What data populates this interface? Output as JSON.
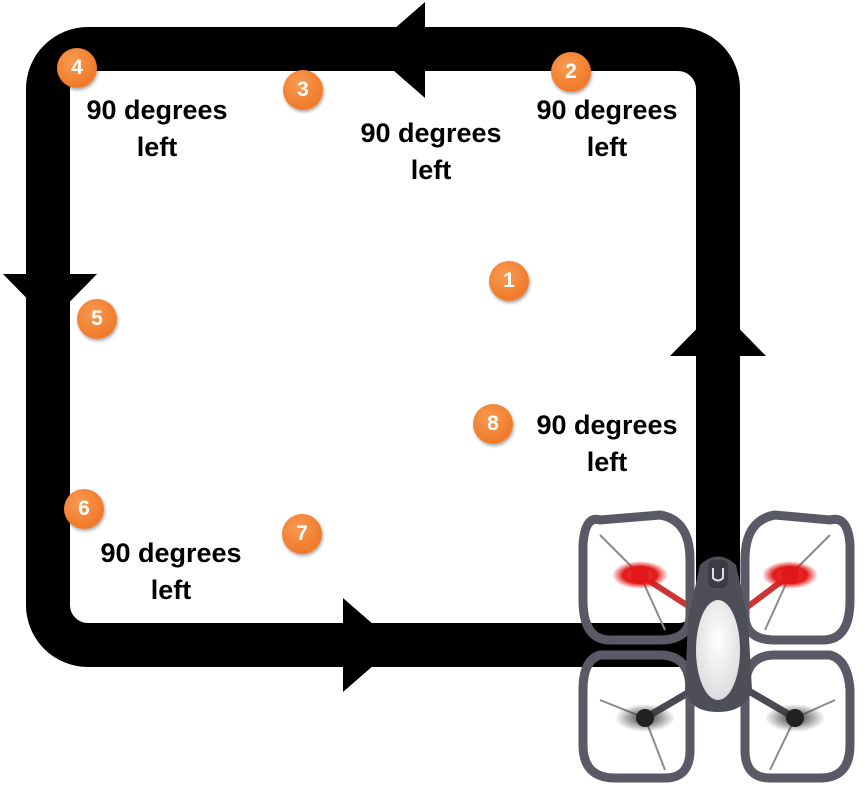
{
  "colors": {
    "path": "#000000",
    "badge": "#f07a2a",
    "badge_highlight": "#f89a52",
    "badge_text": "#ffffff",
    "drone_frame": "#5a5a66",
    "rotor_red": "#e01818",
    "rotor_dark": "#222222"
  },
  "steps": [
    {
      "number": "1"
    },
    {
      "number": "2"
    },
    {
      "number": "3"
    },
    {
      "number": "4"
    },
    {
      "number": "5"
    },
    {
      "number": "6"
    },
    {
      "number": "7"
    },
    {
      "number": "8"
    }
  ],
  "turn_labels": [
    {
      "line1": "90 degrees",
      "line2": "left"
    },
    {
      "line1": "90 degrees",
      "line2": "left"
    },
    {
      "line1": "90 degrees",
      "line2": "left"
    },
    {
      "line1": "90 degrees",
      "line2": "left"
    },
    {
      "line1": "90 degrees",
      "line2": "left"
    }
  ],
  "icons": {
    "path_arrows": "arrow-icon",
    "drone": "drone-icon"
  }
}
